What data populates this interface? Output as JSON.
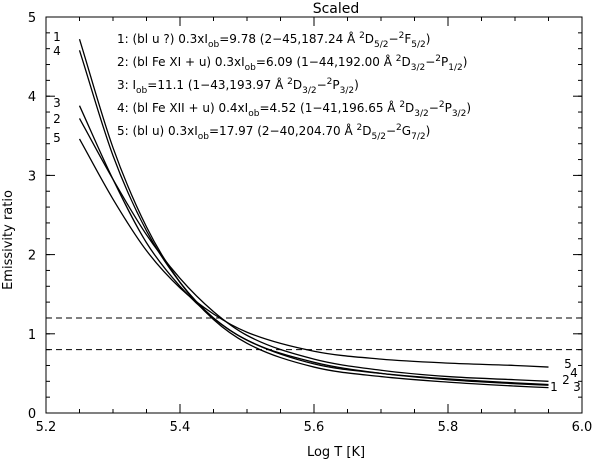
{
  "chart_data": {
    "type": "line",
    "title": "Scaled",
    "xlabel": "Log T [K]",
    "ylabel": "Emissivity ratio",
    "xlim": [
      5.2,
      6.0
    ],
    "ylim": [
      0,
      5
    ],
    "x_ticks": [
      "5.2",
      "5.4",
      "5.6",
      "5.8",
      "6.0"
    ],
    "y_ticks": [
      "0",
      "1",
      "2",
      "3",
      "4",
      "5"
    ],
    "reference_lines": [
      0.8,
      1.2
    ],
    "grid": false,
    "series": [
      {
        "id": "1",
        "legend": [
          {
            "t": "1: (bl u ?) 0.3xI"
          },
          {
            "t": "ob",
            "s": "sub"
          },
          {
            "t": "=9.78 (2−45,187.24 Å "
          },
          {
            "t": "2",
            "s": "sup"
          },
          {
            "t": "D"
          },
          {
            "t": "5/2",
            "s": "sub"
          },
          {
            "t": "−"
          },
          {
            "t": "2",
            "s": "sup"
          },
          {
            "t": "F"
          },
          {
            "t": "5/2",
            "s": "sub"
          },
          {
            "t": ")"
          }
        ],
        "x": [
          5.25,
          5.3,
          5.35,
          5.4,
          5.45,
          5.5,
          5.6,
          5.7,
          5.8,
          5.9,
          5.95
        ],
        "y": [
          4.72,
          3.35,
          2.35,
          1.65,
          1.18,
          0.88,
          0.58,
          0.46,
          0.39,
          0.34,
          0.32
        ]
      },
      {
        "id": "2",
        "legend": [
          {
            "t": "2: (bl Fe XI + u) 0.3xI"
          },
          {
            "t": "ob",
            "s": "sub"
          },
          {
            "t": "=6.09 (1−44,192.00 Å "
          },
          {
            "t": "2",
            "s": "sup"
          },
          {
            "t": "D"
          },
          {
            "t": "3/2",
            "s": "sub"
          },
          {
            "t": "−"
          },
          {
            "t": "2",
            "s": "sup"
          },
          {
            "t": "P"
          },
          {
            "t": "1/2",
            "s": "sub"
          },
          {
            "t": ")"
          }
        ],
        "x": [
          5.25,
          5.3,
          5.35,
          5.4,
          5.45,
          5.5,
          5.6,
          5.7,
          5.8,
          5.9,
          5.95
        ],
        "y": [
          3.72,
          2.95,
          2.25,
          1.7,
          1.28,
          0.98,
          0.68,
          0.54,
          0.46,
          0.42,
          0.4
        ]
      },
      {
        "id": "3",
        "legend": [
          {
            "t": "3: I"
          },
          {
            "t": "ob",
            "s": "sub"
          },
          {
            "t": "=11.1 (1−43,193.97 Å "
          },
          {
            "t": "2",
            "s": "sup"
          },
          {
            "t": "D"
          },
          {
            "t": "3/2",
            "s": "sub"
          },
          {
            "t": "−"
          },
          {
            "t": "2",
            "s": "sup"
          },
          {
            "t": "P"
          },
          {
            "t": "3/2",
            "s": "sub"
          },
          {
            "t": ")"
          }
        ],
        "x": [
          5.25,
          5.3,
          5.35,
          5.4,
          5.45,
          5.5,
          5.6,
          5.7,
          5.8,
          5.9,
          5.95
        ],
        "y": [
          3.88,
          2.95,
          2.15,
          1.6,
          1.2,
          0.92,
          0.64,
          0.5,
          0.42,
          0.37,
          0.35
        ]
      },
      {
        "id": "4",
        "legend": [
          {
            "t": "4: (bl Fe XII + u) 0.4xI"
          },
          {
            "t": "ob",
            "s": "sub"
          },
          {
            "t": "=4.52 (1−41,196.65 Å "
          },
          {
            "t": "2",
            "s": "sup"
          },
          {
            "t": "D"
          },
          {
            "t": "3/2",
            "s": "sub"
          },
          {
            "t": "−"
          },
          {
            "t": "2",
            "s": "sup"
          },
          {
            "t": "P"
          },
          {
            "t": "3/2",
            "s": "sub"
          },
          {
            "t": ")"
          }
        ],
        "x": [
          5.25,
          5.3,
          5.35,
          5.4,
          5.45,
          5.5,
          5.6,
          5.7,
          5.8,
          5.9,
          5.95
        ],
        "y": [
          4.58,
          3.25,
          2.3,
          1.65,
          1.2,
          0.92,
          0.62,
          0.5,
          0.43,
          0.38,
          0.36
        ]
      },
      {
        "id": "5",
        "legend": [
          {
            "t": "5: (bl u) 0.3xI"
          },
          {
            "t": "ob",
            "s": "sub"
          },
          {
            "t": "=17.97 (2−40,204.70 Å "
          },
          {
            "t": "2",
            "s": "sup"
          },
          {
            "t": "D"
          },
          {
            "t": "5/2",
            "s": "sub"
          },
          {
            "t": "−"
          },
          {
            "t": "2",
            "s": "sup"
          },
          {
            "t": "G"
          },
          {
            "t": "7/2",
            "s": "sub"
          },
          {
            "t": ")"
          }
        ],
        "x": [
          5.25,
          5.3,
          5.35,
          5.4,
          5.45,
          5.5,
          5.6,
          5.7,
          5.8,
          5.9,
          5.95
        ],
        "y": [
          3.46,
          2.7,
          2.05,
          1.58,
          1.25,
          1.02,
          0.78,
          0.68,
          0.63,
          0.6,
          0.58
        ]
      }
    ],
    "left_labels_order": [
      "1",
      "4",
      "3",
      "2",
      "5"
    ],
    "right_labels_order": [
      "5",
      "4",
      "2",
      "3",
      "1"
    ]
  }
}
